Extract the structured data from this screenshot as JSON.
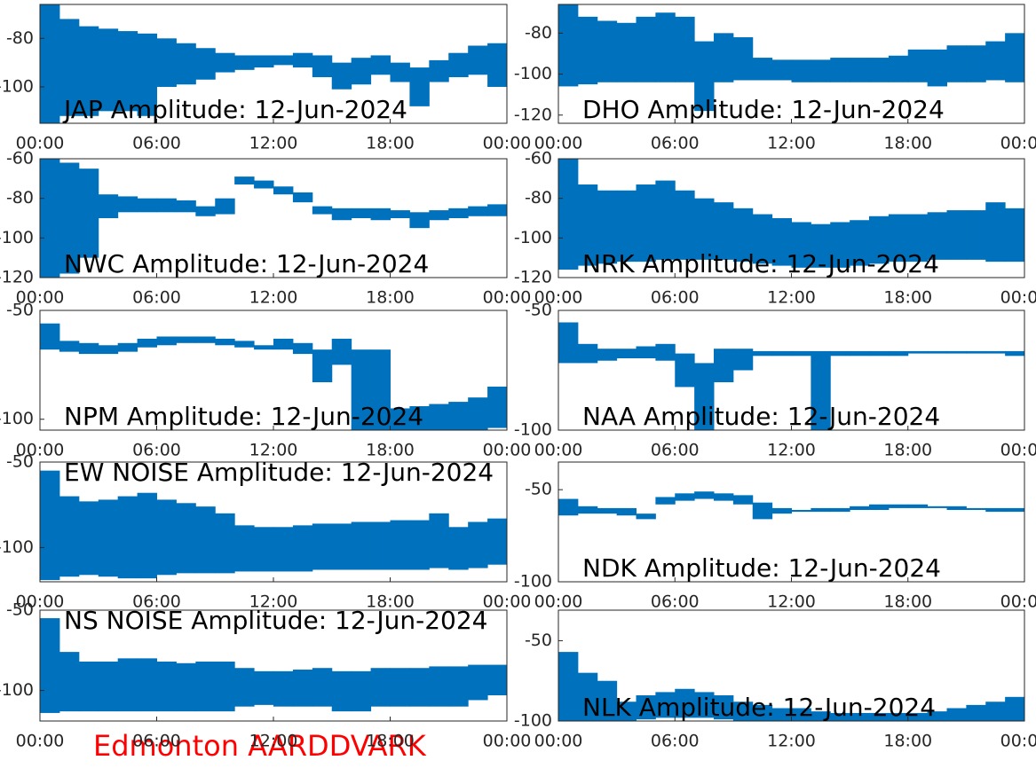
{
  "chart_data": [
    {
      "type": "range",
      "title": "JAP Amplitude: 12-Jun-2024",
      "title_corner": "lower left",
      "color": "#0072bd",
      "x": [
        0,
        1,
        2,
        3,
        4,
        5,
        6,
        7,
        8,
        9,
        10,
        11,
        12,
        13,
        14,
        15,
        16,
        17,
        18,
        19,
        20,
        21,
        22,
        23
      ],
      "low": [
        -115,
        -112,
        -112,
        -110,
        -110,
        -112,
        -100,
        -99,
        -97,
        -94,
        -93,
        -92,
        -91,
        -92,
        -96,
        -101,
        -99,
        -95,
        -98,
        -108,
        -98,
        -96,
        -95,
        -100
      ],
      "high": [
        -66,
        -72,
        -75,
        -76,
        -77,
        -78,
        -80,
        -82,
        -84,
        -86,
        -87,
        -87,
        -87,
        -86,
        -87,
        -90,
        -88,
        -87,
        -90,
        -92,
        -89,
        -86,
        -83,
        -82
      ],
      "xlim": [
        0,
        24
      ],
      "xticks": [
        {
          "value": 0,
          "label": "00:00"
        },
        {
          "value": 6,
          "label": "06:00"
        },
        {
          "value": 12,
          "label": "12:00"
        },
        {
          "value": 18,
          "label": "18:00"
        },
        {
          "value": 24,
          "label": "00:00"
        }
      ],
      "ylim": [
        -115,
        -66
      ],
      "yticks": [
        -100,
        -80
      ]
    },
    {
      "type": "range",
      "title": "DHO Amplitude: 12-Jun-2024",
      "title_corner": "lower left",
      "color": "#0072bd",
      "x": [
        0,
        1,
        2,
        3,
        4,
        5,
        6,
        7,
        8,
        9,
        10,
        11,
        12,
        13,
        14,
        15,
        16,
        17,
        18,
        19,
        20,
        21,
        22,
        23
      ],
      "low": [
        -106,
        -105,
        -104,
        -104,
        -104,
        -104,
        -104,
        -118,
        -104,
        -103,
        -103,
        -103,
        -104,
        -104,
        -104,
        -104,
        -104,
        -104,
        -104,
        -106,
        -104,
        -104,
        -103,
        -104
      ],
      "high": [
        -66,
        -72,
        -74,
        -75,
        -72,
        -70,
        -72,
        -84,
        -80,
        -82,
        -92,
        -93,
        -93,
        -93,
        -92,
        -92,
        -92,
        -91,
        -88,
        -88,
        -86,
        -86,
        -84,
        -80
      ],
      "xlim": [
        0,
        24
      ],
      "xticks": [
        {
          "value": 0,
          "label": "00:00"
        },
        {
          "value": 6,
          "label": "06:00"
        },
        {
          "value": 12,
          "label": "12:00"
        },
        {
          "value": 18,
          "label": "18:00"
        },
        {
          "value": 24,
          "label": "00:00"
        }
      ],
      "ylim": [
        -124,
        -66
      ],
      "yticks": [
        -120,
        -100,
        -80
      ]
    },
    {
      "type": "range",
      "title": "NWC Amplitude: 12-Jun-2024",
      "title_corner": "lower left",
      "color": "#0072bd",
      "x": [
        0,
        1,
        2,
        3,
        4,
        5,
        6,
        7,
        8,
        9,
        10,
        11,
        12,
        13,
        14,
        15,
        16,
        17,
        18,
        19,
        20,
        21,
        22,
        23
      ],
      "low": [
        -120,
        -118,
        -110,
        -90,
        -87,
        -87,
        -87,
        -87,
        -89,
        -88,
        -73,
        -75,
        -78,
        -82,
        -88,
        -91,
        -90,
        -91,
        -90,
        -95,
        -91,
        -90,
        -89,
        -89
      ],
      "high": [
        -60,
        -62,
        -65,
        -78,
        -79,
        -80,
        -80,
        -81,
        -84,
        -80,
        -69,
        -71,
        -74,
        -77,
        -84,
        -85,
        -85,
        -85,
        -86,
        -87,
        -86,
        -85,
        -84,
        -83
      ],
      "xlim": [
        0,
        24
      ],
      "xticks": [
        {
          "value": 0,
          "label": "00:00"
        },
        {
          "value": 6,
          "label": "06:00"
        },
        {
          "value": 12,
          "label": "12:00"
        },
        {
          "value": 18,
          "label": "18:00"
        },
        {
          "value": 24,
          "label": "00:00"
        }
      ],
      "ylim": [
        -120,
        -60
      ],
      "yticks": [
        -120,
        -100,
        -80,
        -60
      ]
    },
    {
      "type": "range",
      "title": "NRK Amplitude: 12-Jun-2024",
      "title_corner": "lower left",
      "color": "#0072bd",
      "x": [
        0,
        1,
        2,
        3,
        4,
        5,
        6,
        7,
        8,
        9,
        10,
        11,
        12,
        13,
        14,
        15,
        16,
        17,
        18,
        19,
        20,
        21,
        22,
        23
      ],
      "low": [
        -116,
        -114,
        -113,
        -112,
        -112,
        -111,
        -111,
        -111,
        -111,
        -112,
        -113,
        -114,
        -115,
        -115,
        -115,
        -114,
        -113,
        -112,
        -112,
        -111,
        -111,
        -111,
        -112,
        -112
      ],
      "high": [
        -60,
        -73,
        -76,
        -76,
        -73,
        -71,
        -76,
        -80,
        -82,
        -85,
        -88,
        -90,
        -92,
        -93,
        -92,
        -91,
        -89,
        -88,
        -88,
        -87,
        -86,
        -86,
        -82,
        -85
      ],
      "xlim": [
        0,
        24
      ],
      "xticks": [
        {
          "value": 0,
          "label": "00:00"
        },
        {
          "value": 6,
          "label": "06:00"
        },
        {
          "value": 12,
          "label": "12:00"
        },
        {
          "value": 18,
          "label": "18:00"
        },
        {
          "value": 24,
          "label": "00:00"
        }
      ],
      "ylim": [
        -120,
        -60
      ],
      "yticks": [
        -120,
        -100,
        -80,
        -60
      ]
    },
    {
      "type": "range",
      "title": "NPM Amplitude: 12-Jun-2024",
      "title_corner": "lower left",
      "color": "#0072bd",
      "x": [
        0,
        1,
        2,
        3,
        4,
        5,
        6,
        7,
        8,
        9,
        10,
        11,
        12,
        13,
        14,
        15,
        16,
        17,
        18,
        19,
        20,
        21,
        22,
        23
      ],
      "low": [
        -68,
        -69,
        -70,
        -70,
        -69,
        -67,
        -66,
        -65,
        -65,
        -66,
        -67,
        -68,
        -68,
        -70,
        -83,
        -75,
        -105,
        -105,
        -105,
        -105,
        -105,
        -105,
        -105,
        -104
      ],
      "high": [
        -56,
        -64,
        -65,
        -66,
        -65,
        -63,
        -62,
        -62,
        -62,
        -63,
        -64,
        -66,
        -63,
        -65,
        -68,
        -63,
        -68,
        -68,
        -95,
        -94,
        -93,
        -92,
        -90,
        -85
      ],
      "xlim": [
        0,
        24
      ],
      "xticks": [
        {
          "value": 0,
          "label": "00:00"
        },
        {
          "value": 6,
          "label": "06:00"
        },
        {
          "value": 12,
          "label": "12:00"
        },
        {
          "value": 18,
          "label": "18:00"
        },
        {
          "value": 24,
          "label": "00:00"
        }
      ],
      "ylim": [
        -105,
        -50
      ],
      "yticks": [
        -100,
        -50
      ]
    },
    {
      "type": "range",
      "title": "NAA Amplitude: 12-Jun-2024",
      "title_corner": "lower left",
      "color": "#0072bd",
      "x": [
        0,
        1,
        2,
        3,
        4,
        5,
        6,
        7,
        8,
        9,
        10,
        11,
        12,
        13,
        14,
        15,
        16,
        17,
        18,
        19,
        20,
        21,
        22,
        23
      ],
      "low": [
        -72,
        -72,
        -71,
        -70,
        -70,
        -71,
        -82,
        -100,
        -80,
        -75,
        -69,
        -69,
        -69,
        -100,
        -69,
        -69,
        -69,
        -69,
        -68,
        -68,
        -68,
        -68,
        -68,
        -69
      ],
      "high": [
        -55,
        -64,
        -66,
        -66,
        -65,
        -64,
        -68,
        -72,
        -66,
        -66,
        -67,
        -67,
        -67,
        -67,
        -67,
        -67,
        -67,
        -67,
        -67,
        -67,
        -67,
        -67,
        -67,
        -67
      ],
      "xlim": [
        0,
        24
      ],
      "xticks": [
        {
          "value": 0,
          "label": "00:00"
        },
        {
          "value": 6,
          "label": "06:00"
        },
        {
          "value": 12,
          "label": "12:00"
        },
        {
          "value": 18,
          "label": "18:00"
        },
        {
          "value": 24,
          "label": "00:00"
        }
      ],
      "ylim": [
        -100,
        -50
      ],
      "yticks": [
        -100,
        -50
      ]
    },
    {
      "type": "range",
      "title": "EW NOISE Amplitude: 12-Jun-2024",
      "title_corner": "upper left",
      "color": "#0072bd",
      "x": [
        0,
        1,
        2,
        3,
        4,
        5,
        6,
        7,
        8,
        9,
        10,
        11,
        12,
        13,
        14,
        15,
        16,
        17,
        18,
        19,
        20,
        21,
        22,
        23
      ],
      "low": [
        -119,
        -117,
        -116,
        -117,
        -118,
        -118,
        -116,
        -115,
        -115,
        -115,
        -114,
        -114,
        -114,
        -114,
        -113,
        -113,
        -113,
        -113,
        -113,
        -113,
        -112,
        -113,
        -112,
        -110
      ],
      "high": [
        -55,
        -70,
        -73,
        -72,
        -70,
        -68,
        -72,
        -74,
        -76,
        -80,
        -87,
        -88,
        -88,
        -87,
        -86,
        -86,
        -85,
        -85,
        -84,
        -84,
        -80,
        -88,
        -85,
        -83
      ],
      "xlim": [
        0,
        24
      ],
      "xticks": [
        {
          "value": 0,
          "label": "00:00"
        },
        {
          "value": 6,
          "label": "06:00"
        },
        {
          "value": 12,
          "label": "12:00"
        },
        {
          "value": 18,
          "label": "18:00"
        },
        {
          "value": 24,
          "label": "00:00"
        }
      ],
      "ylim": [
        -120,
        -50
      ],
      "yticks": [
        -100,
        -50
      ]
    },
    {
      "type": "range",
      "title": "NDK Amplitude: 12-Jun-2024",
      "title_corner": "lower left",
      "color": "#0072bd",
      "x": [
        0,
        1,
        2,
        3,
        4,
        5,
        6,
        7,
        8,
        9,
        10,
        11,
        12,
        13,
        14,
        15,
        16,
        17,
        18,
        19,
        20,
        21,
        22,
        23
      ],
      "low": [
        -64,
        -63,
        -63,
        -64,
        -66,
        -58,
        -56,
        -55,
        -56,
        -58,
        -66,
        -63,
        -62,
        -62,
        -62,
        -61,
        -61,
        -60,
        -60,
        -60,
        -61,
        -61,
        -62,
        -62
      ],
      "high": [
        -55,
        -59,
        -60,
        -60,
        -63,
        -54,
        -52,
        -51,
        -52,
        -53,
        -57,
        -60,
        -61,
        -60,
        -60,
        -59,
        -58,
        -58,
        -58,
        -59,
        -59,
        -60,
        -60,
        -60
      ],
      "xlim": [
        0,
        24
      ],
      "xticks": [
        {
          "value": 0,
          "label": "00:00"
        },
        {
          "value": 6,
          "label": "06:00"
        },
        {
          "value": 12,
          "label": "12:00"
        },
        {
          "value": 18,
          "label": "18:00"
        },
        {
          "value": 24,
          "label": "00:00"
        }
      ],
      "ylim": [
        -100,
        -35
      ],
      "yticks": [
        -100,
        -50
      ]
    },
    {
      "type": "range",
      "title": "NS NOISE Amplitude: 12-Jun-2024",
      "title_corner": "upper left",
      "color": "#0072bd",
      "x": [
        0,
        1,
        2,
        3,
        4,
        5,
        6,
        7,
        8,
        9,
        10,
        11,
        12,
        13,
        14,
        15,
        16,
        17,
        18,
        19,
        20,
        21,
        22,
        23
      ],
      "low": [
        -114,
        -113,
        -113,
        -113,
        -113,
        -113,
        -113,
        -113,
        -113,
        -113,
        -110,
        -109,
        -110,
        -110,
        -110,
        -113,
        -113,
        -110,
        -110,
        -110,
        -110,
        -110,
        -106,
        -103
      ],
      "high": [
        -55,
        -76,
        -82,
        -82,
        -80,
        -80,
        -82,
        -83,
        -82,
        -82,
        -86,
        -88,
        -88,
        -87,
        -86,
        -88,
        -88,
        -86,
        -86,
        -86,
        -85,
        -85,
        -84,
        -84
      ],
      "xlim": [
        0,
        24
      ],
      "xticks": [
        {
          "value": 0,
          "label": "00:00"
        },
        {
          "value": 6,
          "label": "06:00"
        },
        {
          "value": 12,
          "label": "12:00"
        },
        {
          "value": 18,
          "label": "18:00"
        },
        {
          "value": 24,
          "label": "00:00"
        }
      ],
      "ylim": [
        -119,
        -50
      ],
      "yticks": [
        -100,
        -50
      ]
    },
    {
      "type": "range",
      "title": "NLK Amplitude: 12-Jun-2024",
      "title_corner": "lower left",
      "color": "#0072bd",
      "x": [
        0,
        1,
        2,
        3,
        4,
        5,
        6,
        7,
        8,
        9,
        10,
        11,
        12,
        13,
        14,
        15,
        16,
        17,
        18,
        19,
        20,
        21,
        22,
        23
      ],
      "low": [
        -100,
        -100,
        -100,
        -100,
        -99,
        -98,
        -98,
        -98,
        -99,
        -100,
        -100,
        -100,
        -100,
        -100,
        -100,
        -100,
        -100,
        -100,
        -100,
        -100,
        -100,
        -100,
        -100,
        -100
      ],
      "high": [
        -57,
        -70,
        -75,
        -88,
        -84,
        -82,
        -80,
        -82,
        -84,
        -88,
        -90,
        -92,
        -92,
        -94,
        -95,
        -95,
        -95,
        -95,
        -95,
        -94,
        -92,
        -90,
        -88,
        -85
      ],
      "xlim": [
        0,
        24
      ],
      "xticks": [
        {
          "value": 0,
          "label": "00:00"
        },
        {
          "value": 6,
          "label": "06:00"
        },
        {
          "value": 12,
          "label": "12:00"
        },
        {
          "value": 18,
          "label": "18:00"
        },
        {
          "value": 24,
          "label": "00:00"
        }
      ],
      "ylim": [
        -100,
        -31
      ],
      "yticks": [
        -100,
        -50
      ]
    }
  ],
  "footer": "Edmonton AARDDVARK"
}
